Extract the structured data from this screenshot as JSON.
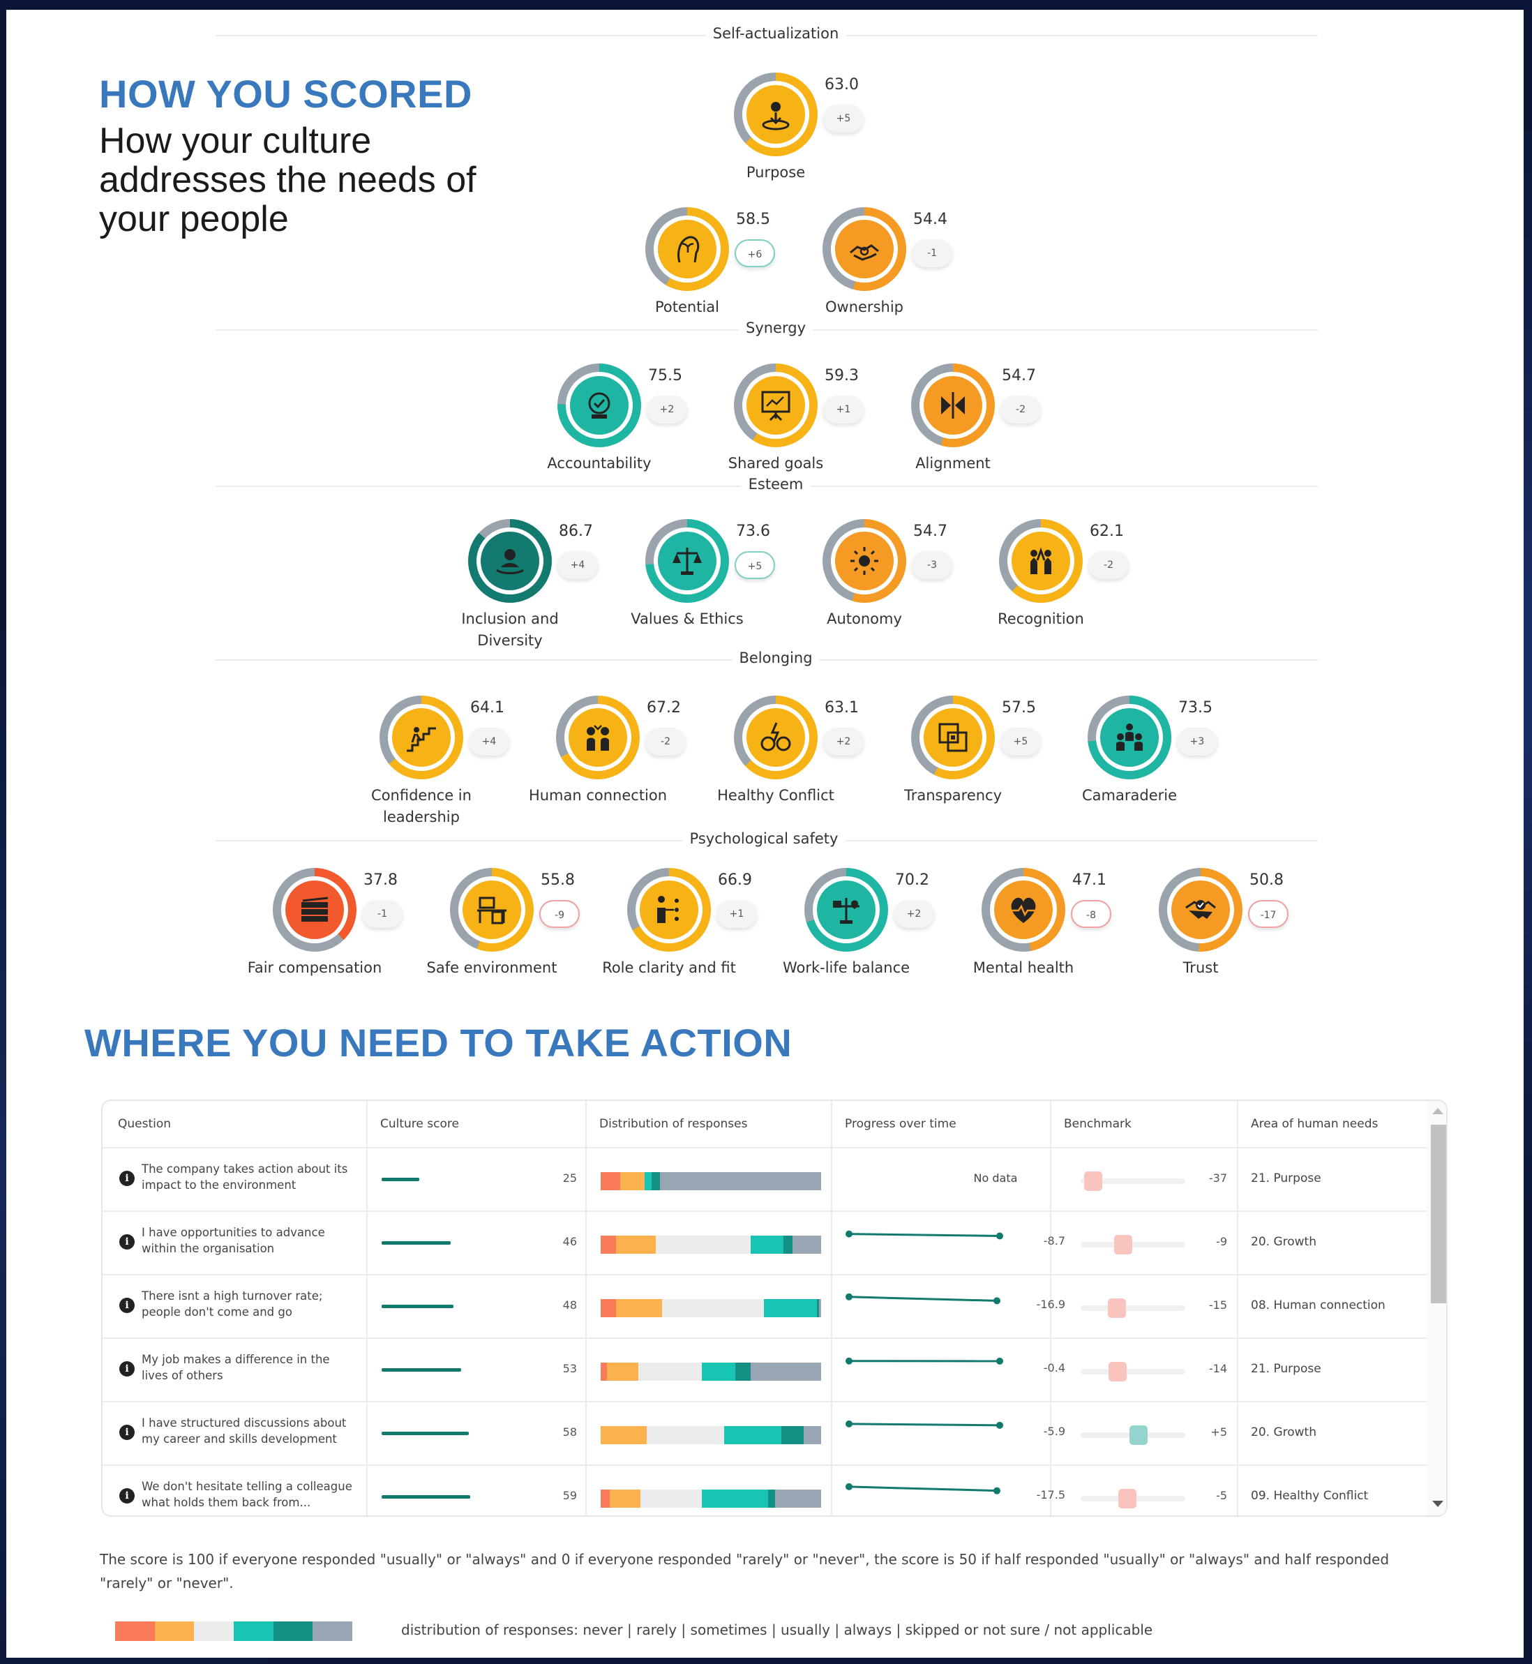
{
  "header": {
    "title": "HOW YOU SCORED",
    "subtitle": "How your culture addresses the needs of your people"
  },
  "levels": {
    "self_actualization": "Self-actualization",
    "synergy": "Synergy",
    "esteem": "Esteem",
    "belonging": "Belonging",
    "psychological_safety": "Psychological safety"
  },
  "needs": [
    {
      "label": "Purpose",
      "score": "63.0",
      "delta": "+5",
      "fill": 63.0,
      "color": "#f7b216",
      "ring": "#f7b216",
      "icon": "purpose-icon"
    },
    {
      "label": "Potential",
      "score": "58.5",
      "delta": "+6",
      "fill": 58.5,
      "color": "#f7b216",
      "ring": "#f7b216",
      "icon": "potential-icon"
    },
    {
      "label": "Ownership",
      "score": "54.4",
      "delta": "-1",
      "fill": 54.4,
      "color": "#f59a23",
      "ring": "#f59a23",
      "icon": "ownership-icon"
    },
    {
      "label": "Accountability",
      "score": "75.5",
      "delta": "+2",
      "fill": 75.5,
      "color": "#1fb5a3",
      "ring": "#1fb5a3",
      "icon": "accountability-icon"
    },
    {
      "label": "Shared goals",
      "score": "59.3",
      "delta": "+1",
      "fill": 59.3,
      "color": "#f7b216",
      "ring": "#f7b216",
      "icon": "shared-goals-icon"
    },
    {
      "label": "Alignment",
      "score": "54.7",
      "delta": "-2",
      "fill": 54.7,
      "color": "#f59a23",
      "ring": "#f59a23",
      "icon": "alignment-icon"
    },
    {
      "label": "Inclusion and Diversity",
      "score": "86.7",
      "delta": "+4",
      "fill": 86.7,
      "color": "#137a70",
      "ring": "#137a70",
      "icon": "inclusion-icon"
    },
    {
      "label": "Values & Ethics",
      "score": "73.6",
      "delta": "+5",
      "fill": 73.6,
      "color": "#1fb5a3",
      "ring": "#1fb5a3",
      "icon": "values-icon"
    },
    {
      "label": "Autonomy",
      "score": "54.7",
      "delta": "-3",
      "fill": 54.7,
      "color": "#f59a23",
      "ring": "#f59a23",
      "icon": "autonomy-icon"
    },
    {
      "label": "Recognition",
      "score": "62.1",
      "delta": "-2",
      "fill": 62.1,
      "color": "#f7b216",
      "ring": "#f7b216",
      "icon": "recognition-icon"
    },
    {
      "label": "Confidence in leadership",
      "score": "64.1",
      "delta": "+4",
      "fill": 64.1,
      "color": "#f7b216",
      "ring": "#f7b216",
      "icon": "leadership-icon"
    },
    {
      "label": "Human connection",
      "score": "67.2",
      "delta": "-2",
      "fill": 67.2,
      "color": "#f7b216",
      "ring": "#f7b216",
      "icon": "human-connection-icon"
    },
    {
      "label": "Healthy Conflict",
      "score": "63.1",
      "delta": "+2",
      "fill": 63.1,
      "color": "#f7b216",
      "ring": "#f7b216",
      "icon": "conflict-icon"
    },
    {
      "label": "Transparency",
      "score": "57.5",
      "delta": "+5",
      "fill": 57.5,
      "color": "#f7b216",
      "ring": "#f7b216",
      "icon": "transparency-icon"
    },
    {
      "label": "Camaraderie",
      "score": "73.5",
      "delta": "+3",
      "fill": 73.5,
      "color": "#1fb5a3",
      "ring": "#1fb5a3",
      "icon": "camaraderie-icon"
    },
    {
      "label": "Fair compensation",
      "score": "37.8",
      "delta": "-1",
      "fill": 37.8,
      "color": "#f25a2e",
      "ring": "#f25a2e",
      "icon": "money-icon"
    },
    {
      "label": "Safe environment",
      "score": "55.8",
      "delta": "-9",
      "fill": 55.8,
      "color": "#f7b216",
      "ring": "#f7b216",
      "icon": "safe-environment-icon"
    },
    {
      "label": "Role clarity and fit",
      "score": "66.9",
      "delta": "+1",
      "fill": 66.9,
      "color": "#f7b216",
      "ring": "#f7b216",
      "icon": "role-clarity-icon"
    },
    {
      "label": "Work-life balance",
      "score": "70.2",
      "delta": "+2",
      "fill": 70.2,
      "color": "#1fb5a3",
      "ring": "#1fb5a3",
      "icon": "work-life-balance-icon"
    },
    {
      "label": "Mental health",
      "score": "47.1",
      "delta": "-8",
      "fill": 47.1,
      "color": "#f59a23",
      "ring": "#f59a23",
      "icon": "heart-icon"
    },
    {
      "label": "Trust",
      "score": "50.8",
      "delta": "-17",
      "fill": 50.8,
      "color": "#f59a23",
      "ring": "#f59a23",
      "icon": "handshake-icon"
    }
  ],
  "action": {
    "title": "WHERE YOU NEED TO TAKE ACTION",
    "columns": [
      "Question",
      "Culture score",
      "Distribution of responses",
      "Progress over time",
      "Benchmark",
      "Area of human needs"
    ],
    "rows": [
      {
        "question": "The company takes action about its impact to the environment",
        "score": "25",
        "score_value": 25,
        "dist": [
          9,
          11,
          0,
          3,
          4,
          73
        ],
        "progress": null,
        "progress_label": "No data",
        "progress_start": 0,
        "progress_end": 0,
        "benchmark": "-37",
        "benchmark_value": -37,
        "benchmark_color": "#f8c4bd",
        "area": "21. Purpose"
      },
      {
        "question": "I have opportunities to advance within the organisation",
        "score": "46",
        "score_value": 46,
        "dist": [
          7,
          18,
          43,
          15,
          4,
          13
        ],
        "progress_label": "-8.7",
        "progress_start": 54.7,
        "progress_end": 46,
        "benchmark": "-9",
        "benchmark_color": "#f8c4bd",
        "area": "20. Growth"
      },
      {
        "question": "There isnt a high turnover rate; people don't come and go",
        "score": "48",
        "score_value": 48,
        "dist": [
          7,
          21,
          46,
          24,
          1,
          1
        ],
        "progress_label": "-16.9",
        "progress_start": 64.9,
        "progress_end": 48,
        "benchmark": "-15",
        "benchmark_color": "#f8c4bd",
        "area": "08. Human connection"
      },
      {
        "question": "My job makes a difference in the lives of others",
        "score": "53",
        "score_value": 53,
        "dist": [
          3,
          14,
          29,
          15,
          7,
          32
        ],
        "progress_label": "-0.4",
        "progress_start": 53.4,
        "progress_end": 53,
        "benchmark": "-14",
        "benchmark_color": "#f8c4bd",
        "area": "21. Purpose"
      },
      {
        "question": "I have structured discussions about my career and skills development",
        "score": "58",
        "score_value": 58,
        "dist": [
          0,
          21,
          35,
          26,
          10,
          8
        ],
        "progress_label": "-5.9",
        "progress_start": 63.9,
        "progress_end": 58,
        "benchmark": "+5",
        "benchmark_color": "#93d5cc",
        "area": "20. Growth"
      },
      {
        "question": "We don't hesitate telling a colleague what holds them back from...",
        "score": "59",
        "score_value": 59,
        "dist": [
          4,
          14,
          28,
          30,
          3,
          21
        ],
        "progress_label": "-17.5",
        "progress_start": 76.5,
        "progress_end": 59,
        "benchmark": "-5",
        "benchmark_color": "#f8c4bd",
        "area": "09. Healthy Conflict"
      }
    ]
  },
  "footnote": "The score is 100 if everyone responded \"usually\" or \"always\" and 0 if everyone responded \"rarely\" or \"never\", the score is 50 if half responded \"usually\" or \"always\" and half responded \"rarely\" or \"never\".",
  "legend": {
    "text": "distribution of responses: never | rarely | sometimes | usually | always | skipped or not sure / not applicable",
    "colors": [
      "#f97b5a",
      "#fbb14d",
      "#ececec",
      "#18c4b3",
      "#138f83",
      "#98a6b3"
    ]
  }
}
